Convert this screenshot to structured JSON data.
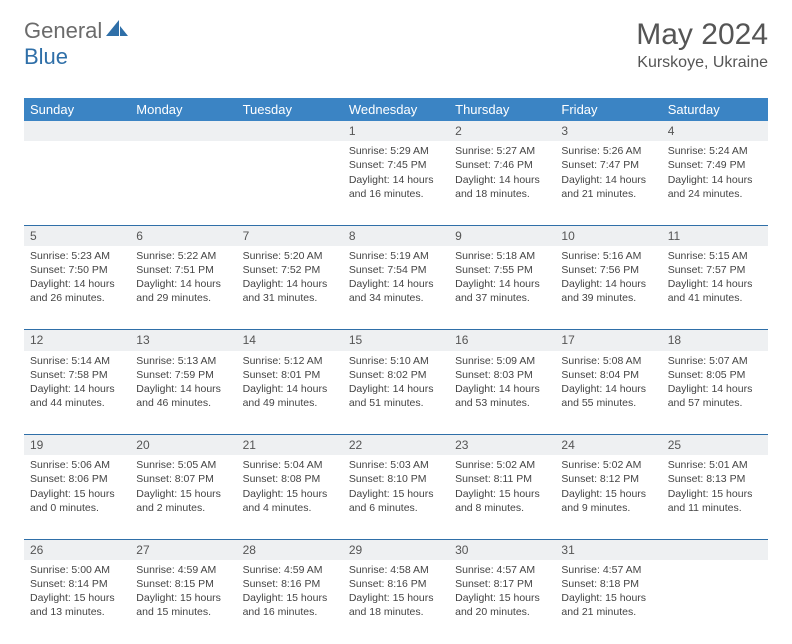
{
  "logo": {
    "part1": "General",
    "part2": "Blue"
  },
  "title": {
    "month": "May 2024",
    "location": "Kurskoye, Ukraine"
  },
  "colors": {
    "header_bg": "#3b84c4",
    "row_border": "#2f6fa8",
    "daynum_bg": "#eef0f2",
    "text": "#444444",
    "logo_gray": "#6b6b6b",
    "logo_blue": "#2f6fa8"
  },
  "columns": [
    "Sunday",
    "Monday",
    "Tuesday",
    "Wednesday",
    "Thursday",
    "Friday",
    "Saturday"
  ],
  "weeks": [
    {
      "days": [
        {
          "num": "",
          "lines": []
        },
        {
          "num": "",
          "lines": []
        },
        {
          "num": "",
          "lines": []
        },
        {
          "num": "1",
          "lines": [
            "Sunrise: 5:29 AM",
            "Sunset: 7:45 PM",
            "Daylight: 14 hours",
            "and 16 minutes."
          ]
        },
        {
          "num": "2",
          "lines": [
            "Sunrise: 5:27 AM",
            "Sunset: 7:46 PM",
            "Daylight: 14 hours",
            "and 18 minutes."
          ]
        },
        {
          "num": "3",
          "lines": [
            "Sunrise: 5:26 AM",
            "Sunset: 7:47 PM",
            "Daylight: 14 hours",
            "and 21 minutes."
          ]
        },
        {
          "num": "4",
          "lines": [
            "Sunrise: 5:24 AM",
            "Sunset: 7:49 PM",
            "Daylight: 14 hours",
            "and 24 minutes."
          ]
        }
      ]
    },
    {
      "days": [
        {
          "num": "5",
          "lines": [
            "Sunrise: 5:23 AM",
            "Sunset: 7:50 PM",
            "Daylight: 14 hours",
            "and 26 minutes."
          ]
        },
        {
          "num": "6",
          "lines": [
            "Sunrise: 5:22 AM",
            "Sunset: 7:51 PM",
            "Daylight: 14 hours",
            "and 29 minutes."
          ]
        },
        {
          "num": "7",
          "lines": [
            "Sunrise: 5:20 AM",
            "Sunset: 7:52 PM",
            "Daylight: 14 hours",
            "and 31 minutes."
          ]
        },
        {
          "num": "8",
          "lines": [
            "Sunrise: 5:19 AM",
            "Sunset: 7:54 PM",
            "Daylight: 14 hours",
            "and 34 minutes."
          ]
        },
        {
          "num": "9",
          "lines": [
            "Sunrise: 5:18 AM",
            "Sunset: 7:55 PM",
            "Daylight: 14 hours",
            "and 37 minutes."
          ]
        },
        {
          "num": "10",
          "lines": [
            "Sunrise: 5:16 AM",
            "Sunset: 7:56 PM",
            "Daylight: 14 hours",
            "and 39 minutes."
          ]
        },
        {
          "num": "11",
          "lines": [
            "Sunrise: 5:15 AM",
            "Sunset: 7:57 PM",
            "Daylight: 14 hours",
            "and 41 minutes."
          ]
        }
      ]
    },
    {
      "days": [
        {
          "num": "12",
          "lines": [
            "Sunrise: 5:14 AM",
            "Sunset: 7:58 PM",
            "Daylight: 14 hours",
            "and 44 minutes."
          ]
        },
        {
          "num": "13",
          "lines": [
            "Sunrise: 5:13 AM",
            "Sunset: 7:59 PM",
            "Daylight: 14 hours",
            "and 46 minutes."
          ]
        },
        {
          "num": "14",
          "lines": [
            "Sunrise: 5:12 AM",
            "Sunset: 8:01 PM",
            "Daylight: 14 hours",
            "and 49 minutes."
          ]
        },
        {
          "num": "15",
          "lines": [
            "Sunrise: 5:10 AM",
            "Sunset: 8:02 PM",
            "Daylight: 14 hours",
            "and 51 minutes."
          ]
        },
        {
          "num": "16",
          "lines": [
            "Sunrise: 5:09 AM",
            "Sunset: 8:03 PM",
            "Daylight: 14 hours",
            "and 53 minutes."
          ]
        },
        {
          "num": "17",
          "lines": [
            "Sunrise: 5:08 AM",
            "Sunset: 8:04 PM",
            "Daylight: 14 hours",
            "and 55 minutes."
          ]
        },
        {
          "num": "18",
          "lines": [
            "Sunrise: 5:07 AM",
            "Sunset: 8:05 PM",
            "Daylight: 14 hours",
            "and 57 minutes."
          ]
        }
      ]
    },
    {
      "days": [
        {
          "num": "19",
          "lines": [
            "Sunrise: 5:06 AM",
            "Sunset: 8:06 PM",
            "Daylight: 15 hours",
            "and 0 minutes."
          ]
        },
        {
          "num": "20",
          "lines": [
            "Sunrise: 5:05 AM",
            "Sunset: 8:07 PM",
            "Daylight: 15 hours",
            "and 2 minutes."
          ]
        },
        {
          "num": "21",
          "lines": [
            "Sunrise: 5:04 AM",
            "Sunset: 8:08 PM",
            "Daylight: 15 hours",
            "and 4 minutes."
          ]
        },
        {
          "num": "22",
          "lines": [
            "Sunrise: 5:03 AM",
            "Sunset: 8:10 PM",
            "Daylight: 15 hours",
            "and 6 minutes."
          ]
        },
        {
          "num": "23",
          "lines": [
            "Sunrise: 5:02 AM",
            "Sunset: 8:11 PM",
            "Daylight: 15 hours",
            "and 8 minutes."
          ]
        },
        {
          "num": "24",
          "lines": [
            "Sunrise: 5:02 AM",
            "Sunset: 8:12 PM",
            "Daylight: 15 hours",
            "and 9 minutes."
          ]
        },
        {
          "num": "25",
          "lines": [
            "Sunrise: 5:01 AM",
            "Sunset: 8:13 PM",
            "Daylight: 15 hours",
            "and 11 minutes."
          ]
        }
      ]
    },
    {
      "days": [
        {
          "num": "26",
          "lines": [
            "Sunrise: 5:00 AM",
            "Sunset: 8:14 PM",
            "Daylight: 15 hours",
            "and 13 minutes."
          ]
        },
        {
          "num": "27",
          "lines": [
            "Sunrise: 4:59 AM",
            "Sunset: 8:15 PM",
            "Daylight: 15 hours",
            "and 15 minutes."
          ]
        },
        {
          "num": "28",
          "lines": [
            "Sunrise: 4:59 AM",
            "Sunset: 8:16 PM",
            "Daylight: 15 hours",
            "and 16 minutes."
          ]
        },
        {
          "num": "29",
          "lines": [
            "Sunrise: 4:58 AM",
            "Sunset: 8:16 PM",
            "Daylight: 15 hours",
            "and 18 minutes."
          ]
        },
        {
          "num": "30",
          "lines": [
            "Sunrise: 4:57 AM",
            "Sunset: 8:17 PM",
            "Daylight: 15 hours",
            "and 20 minutes."
          ]
        },
        {
          "num": "31",
          "lines": [
            "Sunrise: 4:57 AM",
            "Sunset: 8:18 PM",
            "Daylight: 15 hours",
            "and 21 minutes."
          ]
        },
        {
          "num": "",
          "lines": []
        }
      ]
    }
  ]
}
